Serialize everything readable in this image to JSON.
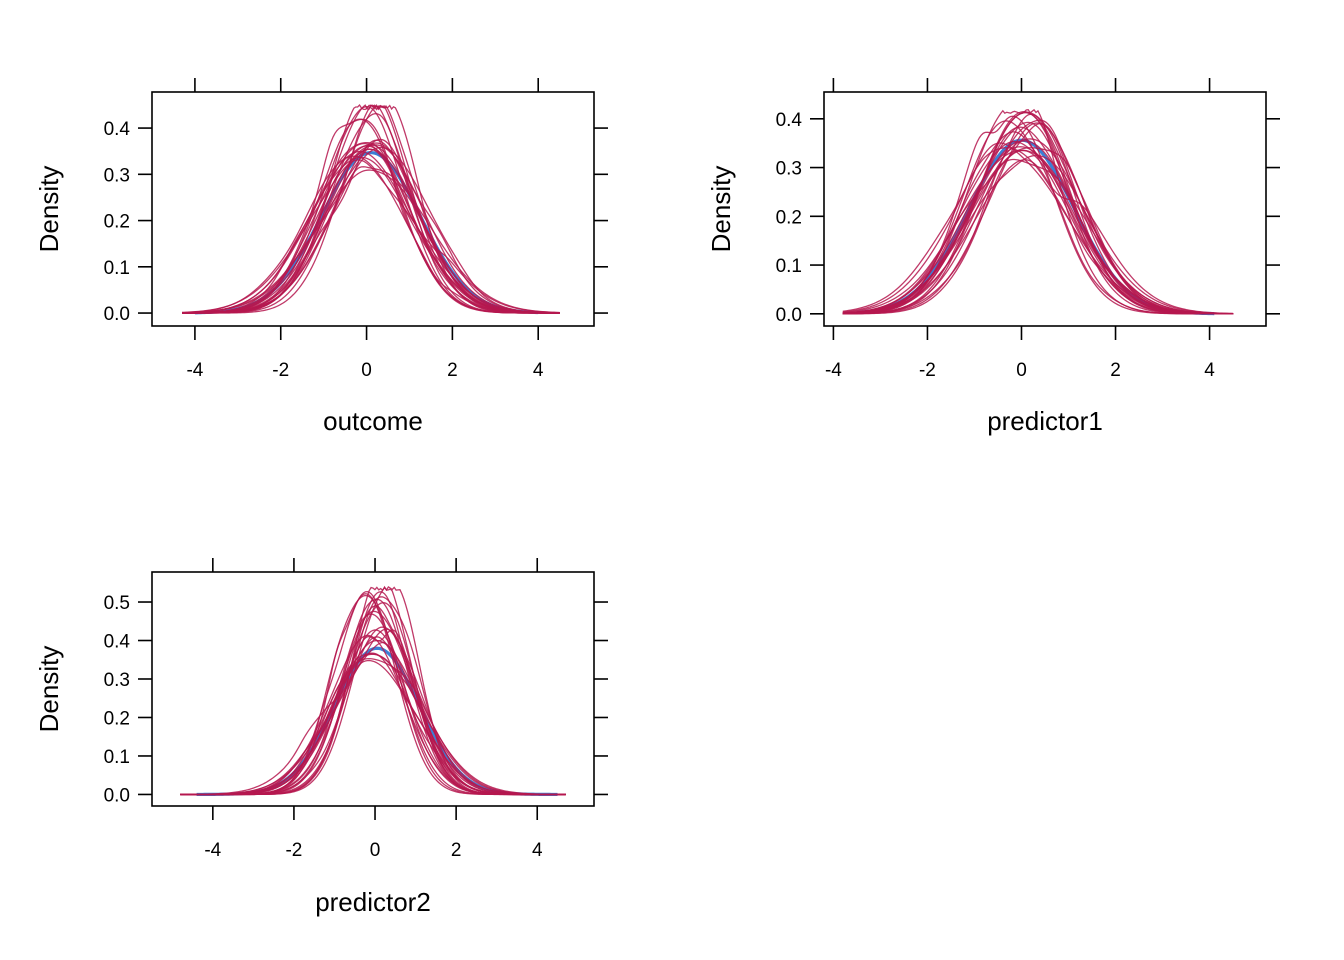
{
  "colors": {
    "observed": "#3c7fd4",
    "imputed": "#b5174f",
    "axis": "#000000",
    "background": "#ffffff"
  },
  "chart_data": [
    {
      "type": "line",
      "xlabel": "outcome",
      "ylabel": "Density",
      "xlim": [
        -5,
        5.3
      ],
      "ylim": [
        -0.028,
        0.478
      ],
      "xticks": [
        -4,
        -2,
        0,
        2,
        4
      ],
      "yticks": [
        0.0,
        0.1,
        0.2,
        0.3,
        0.4
      ],
      "xtick_labels": [
        "-4",
        "-2",
        "0",
        "2",
        "4"
      ],
      "ytick_labels": [
        "0.0",
        "0.1",
        "0.2",
        "0.3",
        "0.4"
      ],
      "observed": {
        "mean": 0.1,
        "sd": 1.15,
        "range": [
          -4.0,
          4.0
        ]
      },
      "imputed": {
        "count": 25,
        "mean_spread": 0.35,
        "sd_range": [
          0.88,
          1.3
        ],
        "range": [
          -4.3,
          4.5
        ],
        "max_density": 0.45
      },
      "grid": false
    },
    {
      "type": "line",
      "xlabel": "predictor1",
      "ylabel": "Density",
      "xlim": [
        -4.2,
        5.2
      ],
      "ylim": [
        -0.025,
        0.455
      ],
      "xticks": [
        -4,
        -2,
        0,
        2,
        4
      ],
      "yticks": [
        0.0,
        0.1,
        0.2,
        0.3,
        0.4
      ],
      "xtick_labels": [
        "-4",
        "-2",
        "0",
        "2",
        "4"
      ],
      "ytick_labels": [
        "0.0",
        "0.1",
        "0.2",
        "0.3",
        "0.4"
      ],
      "observed": {
        "mean": 0.0,
        "sd": 1.12,
        "range": [
          -3.5,
          4.1
        ]
      },
      "imputed": {
        "count": 25,
        "mean_spread": 0.3,
        "sd_range": [
          0.93,
          1.25
        ],
        "range": [
          -3.8,
          4.5
        ],
        "max_density": 0.42
      },
      "grid": false
    },
    {
      "type": "line",
      "xlabel": "predictor2",
      "ylabel": "Density",
      "xlim": [
        -5.5,
        5.4
      ],
      "ylim": [
        -0.03,
        0.578
      ],
      "xticks": [
        -4,
        -2,
        0,
        2,
        4
      ],
      "yticks": [
        0.0,
        0.1,
        0.2,
        0.3,
        0.4,
        0.5
      ],
      "xtick_labels": [
        "-4",
        "-2",
        "0",
        "2",
        "4"
      ],
      "ytick_labels": [
        "0.0",
        "0.1",
        "0.2",
        "0.3",
        "0.4",
        "0.5"
      ],
      "observed": {
        "mean": 0.05,
        "sd": 1.05,
        "range": [
          -4.4,
          4.5
        ]
      },
      "imputed": {
        "count": 25,
        "mean_spread": 0.25,
        "sd_range": [
          0.75,
          1.18
        ],
        "range": [
          -4.8,
          4.7
        ],
        "max_density": 0.54
      },
      "grid": false
    }
  ]
}
